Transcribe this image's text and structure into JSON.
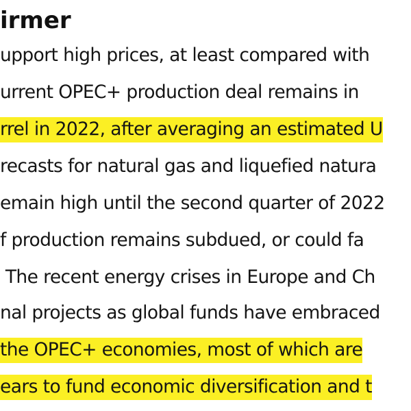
{
  "section_heading": "irmer",
  "lines": [
    {
      "text": "upport high prices, at least compared with",
      "highlighted": false
    },
    {
      "text": "urrent OPEC+ production deal remains in",
      "highlighted": false
    },
    {
      "text": "rrel in 2022, after averaging an estimated U",
      "highlighted": true
    },
    {
      "text": "recasts for natural gas and liquefied natura",
      "highlighted": false
    },
    {
      "text": "emain high until the second quarter of 2022",
      "highlighted": false
    },
    {
      "text": "f production remains subdued, or could fa",
      "highlighted": false
    },
    {
      "text": " The recent energy crises in Europe and Ch",
      "highlighted": false
    },
    {
      "text": "nal projects as global funds have embraced",
      "highlighted": false
    },
    {
      "text": "the OPEC+ economies, most of which are",
      "highlighted": true
    },
    {
      "text": "ears to fund economic diversification and t",
      "highlighted": true
    }
  ],
  "highlight_color": "#fbef24",
  "text_color": "#151515"
}
